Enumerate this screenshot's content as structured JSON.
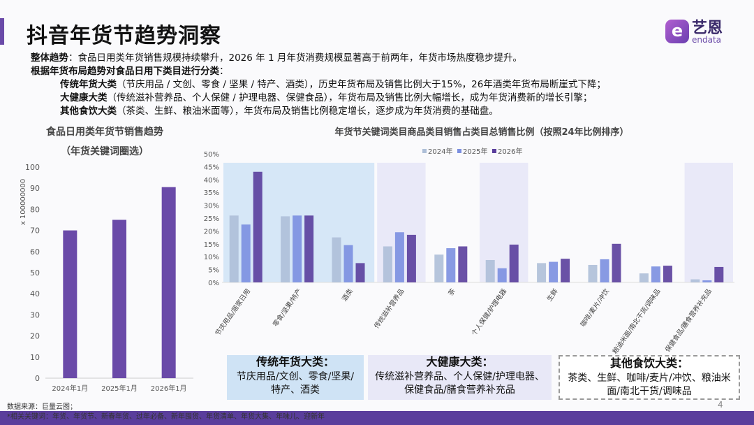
{
  "header": {
    "title": "抖音年货节趋势洞察",
    "logo_cn": "艺恩",
    "logo_en": "endata",
    "logo_mark": "e"
  },
  "summary": {
    "l1_bold": "整体趋势",
    "l1": "：食品日用类年货销售规模持续攀升，2026 年 1 月年货消费规模显著高于前两年，年货市场热度稳步提升。",
    "l2_bold": "根据年货布局趋势对食品日用下类目进行分类",
    "l2": "：",
    "l3_bold": "传统年货大类",
    "l3": "（节庆用品 / 文创、零食 / 坚果 / 特产、酒类），历史年货布局及销售比例大于15%，26年酒类年货布局断崖式下降；",
    "l4_bold": "大健康大类",
    "l4": "（传统滋补营养品、个人保健 / 护理电器、保健食品），年货布局及销售比例大幅增长，成为年货消费新的增长引擎；",
    "l5_bold": "其他食饮大类",
    "l5": "（茶类、生鲜、粮油米面等），年货布局及销售比例稳定增长，逐步成为年货消费的基础盘。"
  },
  "chart_data": [
    {
      "type": "bar",
      "title": "食品日用类年货节销售趋势",
      "subtitle": "（年货关键词圈选）",
      "ylabel": "x 100000000",
      "ylim": [
        0,
        100
      ],
      "yticks": [
        0,
        10,
        20,
        30,
        40,
        50,
        60,
        70,
        80,
        90,
        100
      ],
      "categories": [
        "2024年1月",
        "2025年1月",
        "2026年1月"
      ],
      "values": [
        70,
        75,
        90.5
      ],
      "color": "#6a4aa8"
    },
    {
      "type": "bar",
      "title": "年货节关键词类目商品类目销售占类目总销售比例（按照24年比例排序）",
      "ylim": [
        0,
        50
      ],
      "yticks": [
        "0%",
        "5%",
        "10%",
        "15%",
        "20%",
        "25%",
        "30%",
        "35%",
        "40%",
        "45%",
        "50%"
      ],
      "legend": "top-center",
      "categories": [
        "节庆用品/居家日用",
        "零食/坚果/特产",
        "酒类",
        "传统滋补营养品",
        "茶",
        "个人保健/护理电器",
        "生鲜",
        "咖啡/麦片/冲饮",
        "粮油米面/南北干货/调味品",
        "保健食品/膳食营养补充品"
      ],
      "series": [
        {
          "name": "2024年",
          "color": "#aebfd8",
          "values": [
            26,
            25.7,
            17.5,
            14,
            10.8,
            8.7,
            7.5,
            6.8,
            3.5,
            1.2
          ]
        },
        {
          "name": "2025年",
          "color": "#7b8fe0",
          "values": [
            22.5,
            26,
            14.5,
            19.5,
            13.3,
            5.5,
            8,
            9,
            6.2,
            0.8
          ]
        },
        {
          "name": "2026年",
          "color": "#5a3e9c",
          "values": [
            43,
            26,
            7.5,
            18.5,
            14,
            14.7,
            9.2,
            15,
            6.5,
            6
          ]
        }
      ]
    }
  ],
  "groups": [
    {
      "title": "传统年货大类：",
      "body": "节庆用品/文创、零食/坚果/特产、酒类"
    },
    {
      "title": "大健康大类：",
      "body": "传统滋补营养品、个人保健/护理电器、保健食品/膳食营养补充品"
    },
    {
      "title": "其他食饮大类：",
      "body": "茶类、生鲜、咖啡/麦片/冲饮、粮油米面/南北干货/调味品"
    }
  ],
  "footer": {
    "source": "数据来源：巨量云图；",
    "keywords": "*相关关键词：年货、年货节、新春年货、过年必备、新年囤货、年货清单、年货大集、年味儿、迎新年",
    "page": "4"
  }
}
